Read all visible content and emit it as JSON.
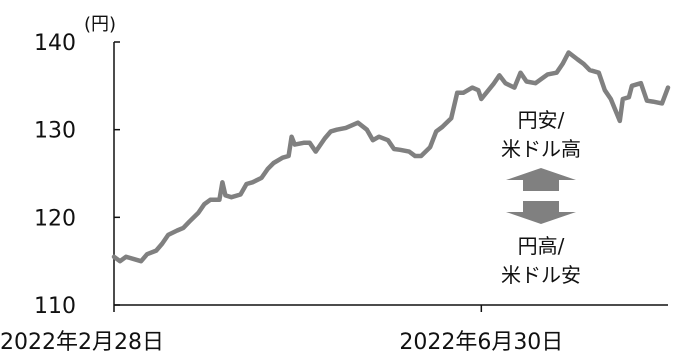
{
  "chart_data": {
    "type": "line",
    "title": "",
    "unit": "(円)",
    "xlabel": "",
    "ylabel": "",
    "ylim": [
      110,
      140
    ],
    "yticks": [
      "140",
      "130",
      "120",
      "110"
    ],
    "xtick_labels": [
      "2022年2月28日",
      "2022年6月30日"
    ],
    "x_range": [
      "2022-02-28",
      "2022-08-31"
    ],
    "grid": false,
    "series": [
      {
        "color": "#808080",
        "points": [
          [
            "2022-02-28",
            115.5
          ],
          [
            "2022-03-02",
            115.0
          ],
          [
            "2022-03-04",
            115.5
          ],
          [
            "2022-03-07",
            115.2
          ],
          [
            "2022-03-09",
            115.0
          ],
          [
            "2022-03-11",
            115.8
          ],
          [
            "2022-03-14",
            116.2
          ],
          [
            "2022-03-16",
            117.0
          ],
          [
            "2022-03-18",
            118.0
          ],
          [
            "2022-03-21",
            118.5
          ],
          [
            "2022-03-23",
            118.8
          ],
          [
            "2022-03-25",
            119.5
          ],
          [
            "2022-03-28",
            120.5
          ],
          [
            "2022-03-30",
            121.5
          ],
          [
            "2022-04-01",
            122.0
          ],
          [
            "2022-04-04",
            122.0
          ],
          [
            "2022-04-05",
            124.0
          ],
          [
            "2022-04-06",
            122.5
          ],
          [
            "2022-04-08",
            122.3
          ],
          [
            "2022-04-11",
            122.6
          ],
          [
            "2022-04-13",
            123.8
          ],
          [
            "2022-04-15",
            124.0
          ],
          [
            "2022-04-18",
            124.5
          ],
          [
            "2022-04-20",
            125.5
          ],
          [
            "2022-04-22",
            126.2
          ],
          [
            "2022-04-25",
            126.8
          ],
          [
            "2022-04-27",
            127.0
          ],
          [
            "2022-04-28",
            129.2
          ],
          [
            "2022-04-29",
            128.3
          ],
          [
            "2022-05-02",
            128.5
          ],
          [
            "2022-05-04",
            128.5
          ],
          [
            "2022-05-06",
            127.5
          ],
          [
            "2022-05-09",
            129.0
          ],
          [
            "2022-05-11",
            129.8
          ],
          [
            "2022-05-13",
            130.0
          ],
          [
            "2022-05-16",
            130.2
          ],
          [
            "2022-05-18",
            130.5
          ],
          [
            "2022-05-20",
            130.8
          ],
          [
            "2022-05-23",
            130.0
          ],
          [
            "2022-05-25",
            128.8
          ],
          [
            "2022-05-27",
            129.2
          ],
          [
            "2022-05-30",
            128.8
          ],
          [
            "2022-06-01",
            127.8
          ],
          [
            "2022-06-03",
            127.7
          ],
          [
            "2022-06-06",
            127.5
          ],
          [
            "2022-06-08",
            127.0
          ],
          [
            "2022-06-10",
            127.0
          ],
          [
            "2022-06-13",
            128.0
          ],
          [
            "2022-06-15",
            129.8
          ],
          [
            "2022-06-17",
            130.3
          ],
          [
            "2022-06-20",
            131.3
          ],
          [
            "2022-06-22",
            134.2
          ],
          [
            "2022-06-24",
            134.2
          ],
          [
            "2022-06-27",
            134.8
          ],
          [
            "2022-06-29",
            134.5
          ],
          [
            "2022-06-30",
            133.5
          ],
          [
            "2022-07-04",
            135.2
          ],
          [
            "2022-07-06",
            136.2
          ],
          [
            "2022-07-08",
            135.3
          ],
          [
            "2022-07-11",
            134.8
          ],
          [
            "2022-07-13",
            136.5
          ],
          [
            "2022-07-15",
            135.5
          ],
          [
            "2022-07-18",
            135.3
          ],
          [
            "2022-07-20",
            135.8
          ],
          [
            "2022-07-22",
            136.3
          ],
          [
            "2022-07-25",
            136.5
          ],
          [
            "2022-07-27",
            137.5
          ],
          [
            "2022-07-29",
            138.8
          ],
          [
            "2022-08-01",
            138.0
          ],
          [
            "2022-08-03",
            137.5
          ],
          [
            "2022-08-05",
            136.8
          ],
          [
            "2022-08-08",
            136.5
          ],
          [
            "2022-08-10",
            134.5
          ],
          [
            "2022-08-12",
            133.5
          ],
          [
            "2022-08-15",
            131.0
          ],
          [
            "2022-08-16",
            133.5
          ],
          [
            "2022-08-18",
            133.7
          ],
          [
            "2022-08-19",
            135.0
          ],
          [
            "2022-08-22",
            135.3
          ],
          [
            "2022-08-24",
            133.3
          ],
          [
            "2022-08-26",
            133.2
          ],
          [
            "2022-08-29",
            133.0
          ],
          [
            "2022-08-31",
            134.8
          ]
        ]
      }
    ],
    "annotations": {
      "up_label": [
        "円安/",
        "米ドル高"
      ],
      "down_label": [
        "円高/",
        "米ドル安"
      ],
      "arrow_color": "#808080"
    }
  }
}
